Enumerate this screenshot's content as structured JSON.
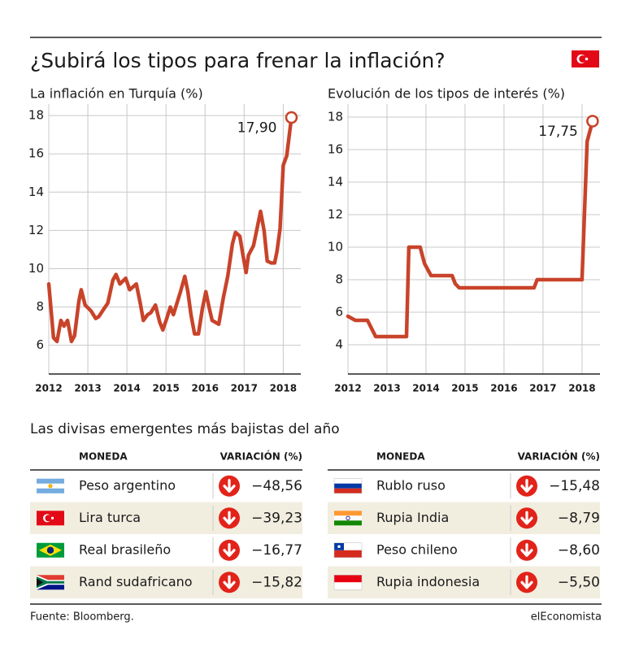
{
  "title": "¿Subirá los tipos para frenar la inflación?",
  "chart_data": [
    {
      "type": "line",
      "title": "La inflación en Turquía (%)",
      "color": "#c8432a",
      "grid": true,
      "xlim": [
        2012,
        2018.45
      ],
      "xticks": [
        2012,
        2013,
        2014,
        2015,
        2016,
        2017,
        2018
      ],
      "ylim": [
        4.5,
        18.6
      ],
      "yticks": [
        6,
        8,
        10,
        12,
        14,
        16,
        18
      ],
      "x": [
        2012.0,
        2012.12,
        2012.21,
        2012.31,
        2012.39,
        2012.48,
        2012.58,
        2012.66,
        2012.77,
        2012.83,
        2012.93,
        2013.08,
        2013.2,
        2013.28,
        2013.41,
        2013.51,
        2013.64,
        2013.72,
        2013.82,
        2013.97,
        2014.07,
        2014.24,
        2014.34,
        2014.42,
        2014.53,
        2014.61,
        2014.73,
        2014.84,
        2014.92,
        2015.02,
        2015.11,
        2015.19,
        2015.37,
        2015.48,
        2015.56,
        2015.64,
        2015.73,
        2015.83,
        2015.93,
        2016.02,
        2016.1,
        2016.18,
        2016.35,
        2016.47,
        2016.58,
        2016.7,
        2016.78,
        2016.89,
        2016.97,
        2017.05,
        2017.11,
        2017.24,
        2017.32,
        2017.42,
        2017.51,
        2017.59,
        2017.69,
        2017.78,
        2017.84,
        2017.92,
        2018.0,
        2018.09,
        2018.21
      ],
      "values": [
        9.2,
        6.4,
        6.2,
        7.3,
        7.0,
        7.3,
        6.2,
        6.5,
        8.3,
        8.9,
        8.1,
        7.8,
        7.4,
        7.5,
        7.9,
        8.2,
        9.4,
        9.7,
        9.2,
        9.5,
        8.9,
        9.2,
        8.2,
        7.3,
        7.6,
        7.7,
        8.1,
        7.2,
        6.8,
        7.4,
        8.0,
        7.6,
        8.8,
        9.6,
        8.8,
        7.6,
        6.6,
        6.6,
        7.9,
        8.8,
        8.0,
        7.3,
        7.1,
        8.5,
        9.6,
        11.3,
        11.9,
        11.7,
        10.7,
        9.8,
        10.7,
        11.2,
        12.0,
        13.0,
        12.0,
        10.4,
        10.3,
        10.3,
        10.9,
        12.1,
        15.4,
        15.9,
        17.9
      ],
      "value_labels": [
        null,
        null,
        null,
        null,
        null,
        null,
        null,
        null,
        null,
        null,
        null,
        null,
        null,
        null,
        null,
        null,
        null,
        null,
        null,
        null,
        null,
        null,
        null,
        null,
        null,
        null,
        null,
        null,
        null,
        null,
        null,
        null,
        null,
        null,
        null,
        null,
        null,
        null,
        null,
        null,
        null,
        null,
        null,
        null,
        null,
        null,
        null,
        null,
        null,
        null,
        null,
        null,
        null,
        null,
        null,
        null,
        null,
        null,
        null,
        null,
        null,
        null,
        "17,90"
      ]
    },
    {
      "type": "line",
      "title": "Evolución de los tipos de interés (%)",
      "color": "#c8432a",
      "grid": true,
      "xlim": [
        2012,
        2018.46
      ],
      "xticks": [
        2012,
        2013,
        2014,
        2015,
        2016,
        2017,
        2018
      ],
      "ylim": [
        2.2,
        18.8
      ],
      "yticks": [
        4,
        6,
        8,
        10,
        12,
        14,
        16,
        18
      ],
      "x": [
        2012.0,
        2012.19,
        2012.5,
        2012.71,
        2013.5,
        2013.56,
        2013.85,
        2013.96,
        2014.13,
        2014.67,
        2014.75,
        2014.85,
        2016.77,
        2016.85,
        2018.0,
        2018.13,
        2018.27
      ],
      "values": [
        5.75,
        5.5,
        5.5,
        4.5,
        4.5,
        10,
        10,
        9,
        8.25,
        8.25,
        7.75,
        7.5,
        7.5,
        8,
        8,
        16.5,
        17.75
      ],
      "value_labels": [
        null,
        null,
        null,
        null,
        null,
        null,
        null,
        null,
        null,
        null,
        null,
        null,
        null,
        null,
        null,
        null,
        "17,75"
      ]
    }
  ],
  "table_section": {
    "title": "Las divisas emergentes más bajistas del año",
    "tables": [
      {
        "columns": [
          "MONEDA",
          "VARIACIÓN (%)"
        ],
        "rows": [
          [
            "Peso argentino",
            "−48,56"
          ],
          [
            "Lira turca",
            "−39,23"
          ],
          [
            "Real brasileño",
            "−16,77"
          ],
          [
            "Rand sudafricano",
            "−15,82"
          ]
        ]
      },
      {
        "columns": [
          "MONEDA",
          "VARIACIÓN (%)"
        ],
        "rows": [
          [
            "Rublo ruso",
            "−15,48"
          ],
          [
            "Rupia India",
            "−8,79"
          ],
          [
            "Peso chileno",
            "−8,60"
          ],
          [
            "Rupia indonesia",
            "−5,50"
          ]
        ]
      }
    ]
  },
  "source": "Fuente: Bloomberg.",
  "brand": "elEconomista"
}
